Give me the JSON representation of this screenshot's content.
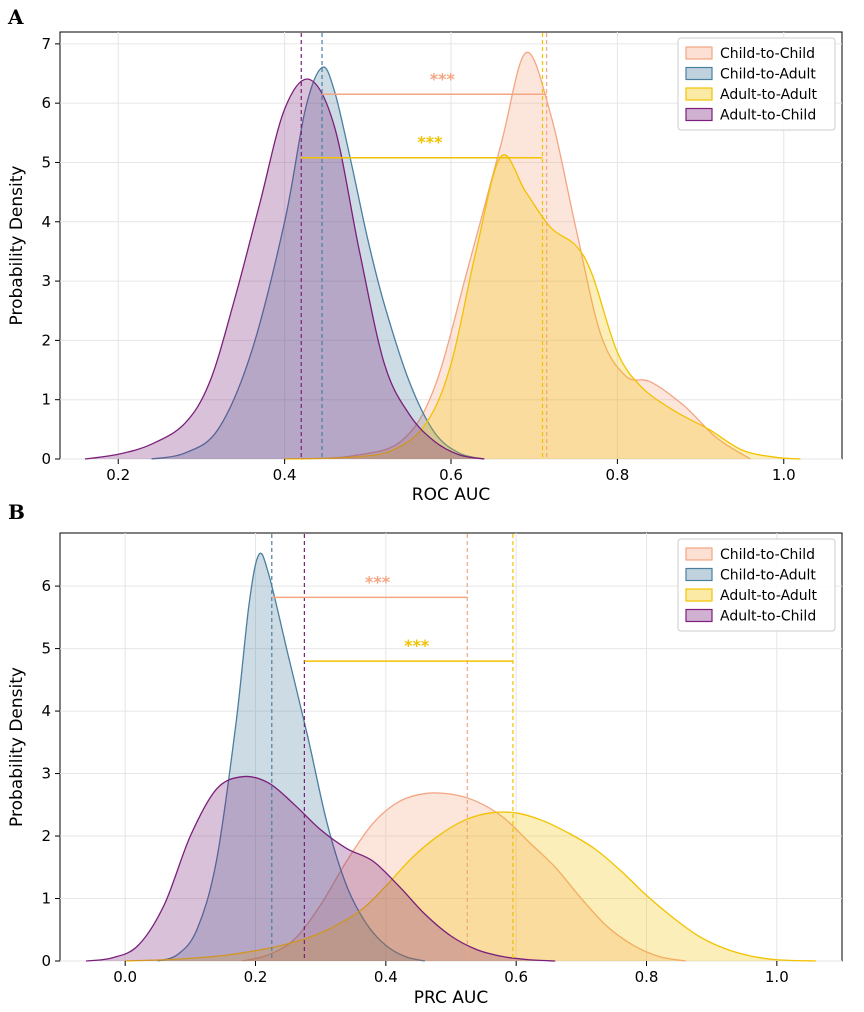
{
  "chart_data": [
    {
      "type": "area",
      "panel": "A",
      "xlabel": "ROC AUC",
      "ylabel": "Probability Density",
      "xlim": [
        0.13,
        1.07
      ],
      "ylim": [
        0,
        7.2
      ],
      "xticks": [
        0.2,
        0.4,
        0.6,
        0.8,
        1.0
      ],
      "xtick_labels": [
        "0.2",
        "0.4",
        "0.6",
        "0.8",
        "1.0"
      ],
      "yticks": [
        0,
        1,
        2,
        3,
        4,
        5,
        6,
        7
      ],
      "ytick_labels": [
        "0",
        "1",
        "2",
        "3",
        "4",
        "5",
        "6",
        "7"
      ],
      "grid": true,
      "legend_position": "top-right",
      "series": [
        {
          "name": "Child-to-Child",
          "color": "#f4a582",
          "mean": 0.715,
          "x": [
            0.42,
            0.48,
            0.54,
            0.58,
            0.62,
            0.66,
            0.69,
            0.72,
            0.75,
            0.78,
            0.81,
            0.84,
            0.88,
            0.92,
            0.96
          ],
          "y": [
            0.0,
            0.05,
            0.3,
            1.2,
            3.2,
            5.3,
            6.85,
            5.8,
            3.9,
            2.1,
            1.4,
            1.3,
            0.9,
            0.35,
            0.0
          ]
        },
        {
          "name": "Child-to-Adult",
          "color": "#4a7fa0",
          "mean": 0.445,
          "x": [
            0.24,
            0.28,
            0.32,
            0.36,
            0.4,
            0.425,
            0.445,
            0.46,
            0.48,
            0.5,
            0.52,
            0.55,
            0.58,
            0.61,
            0.64
          ],
          "y": [
            0.0,
            0.1,
            0.5,
            1.8,
            4.0,
            5.9,
            6.6,
            6.2,
            5.0,
            3.7,
            2.6,
            1.3,
            0.45,
            0.1,
            0.0
          ]
        },
        {
          "name": "Adult-to-Adult",
          "color": "#f2c200",
          "mean": 0.71,
          "x": [
            0.4,
            0.48,
            0.53,
            0.57,
            0.6,
            0.63,
            0.66,
            0.69,
            0.72,
            0.75,
            0.77,
            0.8,
            0.83,
            0.87,
            0.91,
            0.95,
            0.99,
            1.02
          ],
          "y": [
            0.0,
            0.03,
            0.15,
            0.6,
            1.6,
            3.5,
            5.1,
            4.5,
            3.9,
            3.6,
            3.1,
            1.8,
            1.2,
            0.8,
            0.5,
            0.15,
            0.03,
            0.0
          ]
        },
        {
          "name": "Adult-to-Child",
          "color": "#7b1f7a",
          "mean": 0.42,
          "x": [
            0.16,
            0.2,
            0.24,
            0.28,
            0.31,
            0.34,
            0.37,
            0.4,
            0.43,
            0.46,
            0.49,
            0.52,
            0.55,
            0.58,
            0.61,
            0.64
          ],
          "y": [
            0.0,
            0.08,
            0.25,
            0.6,
            1.3,
            2.7,
            4.3,
            5.9,
            6.4,
            5.6,
            3.5,
            1.6,
            0.75,
            0.3,
            0.07,
            0.0
          ]
        }
      ],
      "annotations": [
        {
          "text": "***",
          "color": "#f4a582",
          "y": 6.15,
          "x1": 0.445,
          "x2": 0.715
        },
        {
          "text": "***",
          "color": "#f2c200",
          "y": 5.08,
          "x1": 0.42,
          "x2": 0.71
        }
      ]
    },
    {
      "type": "area",
      "panel": "B",
      "xlabel": "PRC AUC",
      "ylabel": "Probability Density",
      "xlim": [
        -0.1,
        1.1
      ],
      "ylim": [
        0,
        6.85
      ],
      "xticks": [
        0.0,
        0.2,
        0.4,
        0.6,
        0.8,
        1.0
      ],
      "xtick_labels": [
        "0.0",
        "0.2",
        "0.4",
        "0.6",
        "0.8",
        "1.0"
      ],
      "yticks": [
        0,
        1,
        2,
        3,
        4,
        5,
        6
      ],
      "ytick_labels": [
        "0",
        "1",
        "2",
        "3",
        "4",
        "5",
        "6"
      ],
      "grid": true,
      "legend_position": "top-right",
      "series": [
        {
          "name": "Child-to-Child",
          "color": "#f4a582",
          "mean": 0.525,
          "x": [
            0.18,
            0.22,
            0.26,
            0.3,
            0.34,
            0.38,
            0.42,
            0.46,
            0.5,
            0.54,
            0.58,
            0.62,
            0.66,
            0.7,
            0.74,
            0.78,
            0.82,
            0.86
          ],
          "y": [
            0.0,
            0.1,
            0.35,
            0.9,
            1.6,
            2.2,
            2.55,
            2.68,
            2.67,
            2.55,
            2.3,
            1.9,
            1.5,
            1.0,
            0.55,
            0.25,
            0.07,
            0.0
          ]
        },
        {
          "name": "Child-to-Adult",
          "color": "#4a7fa0",
          "mean": 0.225,
          "x": [
            0.05,
            0.08,
            0.11,
            0.14,
            0.17,
            0.19,
            0.205,
            0.22,
            0.25,
            0.28,
            0.31,
            0.34,
            0.37,
            0.4,
            0.43,
            0.46
          ],
          "y": [
            0.0,
            0.1,
            0.5,
            1.6,
            3.8,
            5.7,
            6.5,
            6.2,
            4.9,
            3.6,
            2.2,
            1.2,
            0.6,
            0.25,
            0.07,
            0.0
          ]
        },
        {
          "name": "Adult-to-Adult",
          "color": "#f2c200",
          "mean": 0.595,
          "x": [
            0.0,
            0.08,
            0.16,
            0.24,
            0.3,
            0.36,
            0.4,
            0.44,
            0.48,
            0.52,
            0.56,
            0.6,
            0.64,
            0.68,
            0.72,
            0.76,
            0.8,
            0.84,
            0.88,
            0.92,
            0.96,
            1.0,
            1.06
          ],
          "y": [
            0.0,
            0.03,
            0.1,
            0.25,
            0.45,
            0.8,
            1.2,
            1.65,
            2.0,
            2.25,
            2.37,
            2.37,
            2.25,
            2.05,
            1.8,
            1.45,
            1.05,
            0.7,
            0.4,
            0.2,
            0.08,
            0.02,
            0.0
          ]
        },
        {
          "name": "Adult-to-Child",
          "color": "#7b1f7a",
          "mean": 0.275,
          "x": [
            -0.06,
            -0.02,
            0.02,
            0.06,
            0.1,
            0.14,
            0.18,
            0.22,
            0.26,
            0.3,
            0.34,
            0.38,
            0.42,
            0.46,
            0.5,
            0.54,
            0.58,
            0.62,
            0.66
          ],
          "y": [
            0.0,
            0.05,
            0.25,
            0.9,
            2.0,
            2.75,
            2.95,
            2.85,
            2.5,
            2.1,
            1.8,
            1.6,
            1.2,
            0.75,
            0.4,
            0.18,
            0.07,
            0.02,
            0.0
          ]
        }
      ],
      "annotations": [
        {
          "text": "***",
          "color": "#f4a582",
          "y": 5.82,
          "x1": 0.225,
          "x2": 0.525
        },
        {
          "text": "***",
          "color": "#f2c200",
          "y": 4.8,
          "x1": 0.275,
          "x2": 0.595
        }
      ]
    }
  ]
}
